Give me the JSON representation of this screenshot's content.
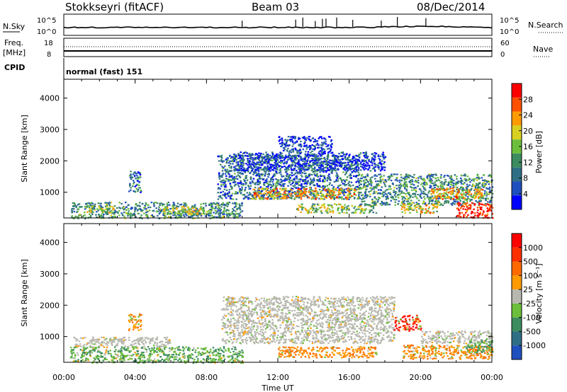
{
  "header": {
    "station": "Stokkseyri (fitACF)",
    "beam": "Beam 03",
    "date": "08/Dec/2014"
  },
  "time_axis": {
    "label": "Time UT",
    "ticks": [
      "00:00",
      "04:00",
      "08:00",
      "12:00",
      "16:00",
      "20:00",
      "00:00"
    ],
    "range_hours": [
      0,
      24
    ]
  },
  "top_panels": {
    "nsky": {
      "left_label": "N.Sky",
      "right_label": "N.Search",
      "left_ticks": [
        "10^5",
        "10^0"
      ],
      "right_ticks": [
        "10^5",
        "10^0"
      ]
    },
    "freq": {
      "left_label_1": "Freq.",
      "left_label_2": "[MHz]",
      "right_label": "Nave",
      "left_ticks": [
        "18",
        "8"
      ],
      "right_ticks": [
        "60",
        "0"
      ]
    },
    "cpid": {
      "label": "CPID",
      "value": "normal (fast) 151"
    }
  },
  "chart_data": [
    {
      "type": "heatmap",
      "name": "power",
      "ylabel": "Slant Range [km]",
      "ylim": [
        180,
        4600
      ],
      "yticks": [
        1000,
        2000,
        3000,
        4000
      ],
      "x": "hours UT",
      "colorbar": {
        "label": "Power [dB]",
        "range": [
          0,
          32
        ],
        "ticks": [
          "4",
          "8",
          "12",
          "16",
          "20",
          "24",
          "28"
        ],
        "colors": [
          "#0000ff",
          "#1f4fbf",
          "#2f6f86",
          "#3c8c60",
          "#6cbf3c",
          "#d8d020",
          "#ff9a00",
          "#ff5000",
          "#ff0000"
        ]
      },
      "regions": [
        {
          "t": [
            0.4,
            10.0
          ],
          "r": [
            180,
            700
          ],
          "level": 0.35
        },
        {
          "t": [
            3.6,
            4.3
          ],
          "r": [
            1000,
            1700
          ],
          "level": 0.3
        },
        {
          "t": [
            1.2,
            2.8
          ],
          "r": [
            350,
            600
          ],
          "level": 0.5
        },
        {
          "t": [
            5.5,
            7.8
          ],
          "r": [
            300,
            560
          ],
          "level": 0.55
        },
        {
          "t": [
            8.6,
            16.5
          ],
          "r": [
            800,
            2200
          ],
          "level": 0.25
        },
        {
          "t": [
            10.5,
            16.5
          ],
          "r": [
            800,
            1150
          ],
          "level": 0.7
        },
        {
          "t": [
            9.5,
            18.0
          ],
          "r": [
            1700,
            2300
          ],
          "level": 0.15
        },
        {
          "t": [
            12.0,
            15.0
          ],
          "r": [
            2300,
            2800
          ],
          "level": 0.12
        },
        {
          "t": [
            13.0,
            17.5
          ],
          "r": [
            350,
            650
          ],
          "level": 0.5
        },
        {
          "t": [
            16.5,
            24.0
          ],
          "r": [
            600,
            1600
          ],
          "level": 0.35
        },
        {
          "t": [
            18.8,
            21.0
          ],
          "r": [
            350,
            700
          ],
          "level": 0.6
        },
        {
          "t": [
            20.5,
            23.5
          ],
          "r": [
            800,
            1150
          ],
          "level": 0.7
        },
        {
          "t": [
            22.0,
            24.0
          ],
          "r": [
            200,
            700
          ],
          "level": 0.95
        }
      ]
    },
    {
      "type": "heatmap",
      "name": "velocity",
      "ylabel": "Slant Range [km]",
      "ylim": [
        180,
        4600
      ],
      "yticks": [
        1000,
        2000,
        3000,
        4000
      ],
      "x": "hours UT",
      "colorbar": {
        "label": "Velocity [m s^-1]",
        "ticks": [
          "1000",
          "500",
          "100",
          "25",
          "-25",
          "-100",
          "-500",
          "-1000"
        ],
        "colors": [
          "#1f4fbf",
          "#2f6f86",
          "#3c8c60",
          "#6cbf3c",
          "#b8b8b0",
          "#ff9a00",
          "#ff6a00",
          "#ff3000",
          "#ff0000"
        ]
      },
      "regions": [
        {
          "t": [
            0.3,
            10.0
          ],
          "r": [
            180,
            700
          ],
          "vel": "green"
        },
        {
          "t": [
            0.5,
            6.0
          ],
          "r": [
            700,
            1000
          ],
          "vel": "grey"
        },
        {
          "t": [
            3.6,
            4.3
          ],
          "r": [
            1200,
            1750
          ],
          "vel": "orange"
        },
        {
          "t": [
            8.8,
            18.5
          ],
          "r": [
            800,
            2300
          ],
          "vel": "grey"
        },
        {
          "t": [
            12.0,
            17.5
          ],
          "r": [
            350,
            700
          ],
          "vel": "orange"
        },
        {
          "t": [
            18.5,
            20.0
          ],
          "r": [
            1200,
            1700
          ],
          "vel": "red"
        },
        {
          "t": [
            19.0,
            24.0
          ],
          "r": [
            300,
            750
          ],
          "vel": "orange"
        },
        {
          "t": [
            20.0,
            24.0
          ],
          "r": [
            800,
            1200
          ],
          "vel": "grey"
        },
        {
          "t": [
            22.5,
            24.0
          ],
          "r": [
            500,
            900
          ],
          "vel": "green"
        }
      ]
    }
  ],
  "ylabel_power": "Slant Range [km]",
  "ylabel_velocity": "Slant Range [km]",
  "colorbar_power_label": "Power [dB]",
  "colorbar_velocity_label": "Velocity [m s⁻¹]"
}
